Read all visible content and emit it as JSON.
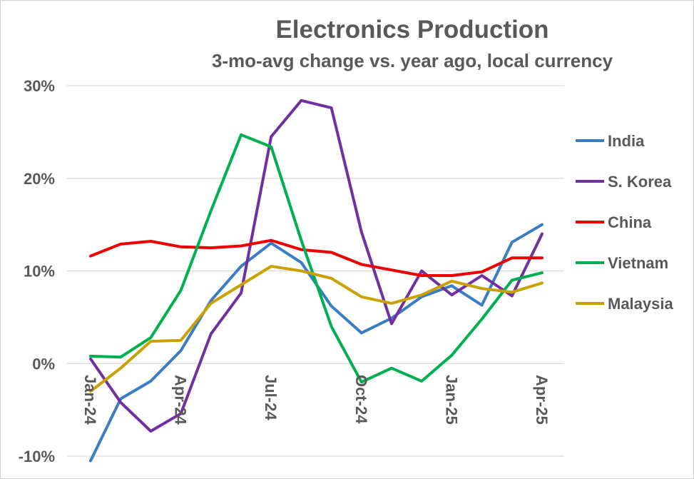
{
  "chart_data": {
    "type": "line",
    "title": "Electronics Production",
    "subtitle": "3-mo-avg change vs. year ago, local currency",
    "x": [
      "Jan-24",
      "Feb-24",
      "Mar-24",
      "Apr-24",
      "May-24",
      "Jun-24",
      "Jul-24",
      "Aug-24",
      "Sep-24",
      "Oct-24",
      "Nov-24",
      "Dec-24",
      "Jan-25",
      "Feb-25",
      "Mar-25",
      "Apr-25"
    ],
    "x_tick_labels": [
      "Jan-24",
      "Apr-24",
      "Jul-24",
      "Oct-24",
      "Jan-25",
      "Apr-25"
    ],
    "x_tick_indices": [
      0,
      3,
      6,
      9,
      12,
      15
    ],
    "ylim": [
      -10,
      30
    ],
    "y_ticks": [
      -10,
      0,
      10,
      20,
      30
    ],
    "y_tick_labels": [
      "-10%",
      "0%",
      "10%",
      "20%",
      "30%"
    ],
    "grid": true,
    "legend_position": "right",
    "series": [
      {
        "name": "India",
        "color": "#3b7dc4",
        "values": [
          -10.5,
          -3.8,
          -1.9,
          1.4,
          6.8,
          10.5,
          13.0,
          10.9,
          6.2,
          3.3,
          4.9,
          7.2,
          8.4,
          6.3,
          13.1,
          15.0
        ]
      },
      {
        "name": "S. Korea",
        "color": "#7030a0",
        "values": [
          0.5,
          -4.2,
          -7.3,
          -5.4,
          3.2,
          7.6,
          24.5,
          28.4,
          27.6,
          14.2,
          4.3,
          10.0,
          7.4,
          9.5,
          7.3,
          14.0
        ]
      },
      {
        "name": "China",
        "color": "#ee0000",
        "values": [
          11.6,
          12.9,
          13.2,
          12.6,
          12.5,
          12.7,
          13.3,
          12.3,
          12.0,
          10.7,
          10.1,
          9.5,
          9.5,
          9.9,
          11.4,
          11.4
        ]
      },
      {
        "name": "Vietnam",
        "color": "#00b050",
        "values": [
          0.8,
          0.7,
          2.8,
          7.9,
          16.5,
          24.7,
          23.4,
          13.3,
          4.0,
          -2.0,
          -0.5,
          -1.9,
          0.9,
          4.8,
          9.0,
          9.8
        ]
      },
      {
        "name": "Malaysia",
        "color": "#c9a100",
        "values": [
          -3.0,
          -0.5,
          2.4,
          2.5,
          6.5,
          8.5,
          10.5,
          10.0,
          9.2,
          7.2,
          6.5,
          7.4,
          8.9,
          8.1,
          7.7,
          8.7
        ]
      }
    ]
  }
}
